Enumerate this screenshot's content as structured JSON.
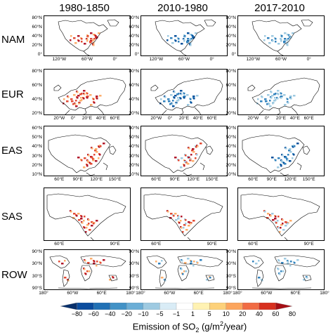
{
  "columns": [
    "1980-1850",
    "2010-1980",
    "2017-2010"
  ],
  "rows": [
    {
      "id": "NAM",
      "label": "NAM",
      "lat_ticks": [
        "80°N",
        "60°N",
        "40°N",
        "20°N",
        "0°"
      ],
      "lon_ticks": [
        "120°W",
        "60°W",
        "0°"
      ]
    },
    {
      "id": "EUR",
      "label": "EUR",
      "lat_ticks": [
        "80°N",
        "60°N",
        "40°N",
        "20°N"
      ],
      "lon_ticks": [
        "20°W",
        "0°",
        "20°E",
        "40°E",
        "60°E"
      ]
    },
    {
      "id": "EAS",
      "label": "EAS",
      "lat_ticks": [
        "60°N",
        "50°N",
        "40°N",
        "30°N",
        "20°N",
        "10°N"
      ],
      "lon_ticks": [
        "60°E",
        "90°E",
        "120°E",
        "150°E"
      ]
    },
    {
      "id": "SAS",
      "label": "SAS",
      "lat_ticks": [],
      "lon_ticks": [
        "60°E",
        "90°E"
      ]
    },
    {
      "id": "ROW",
      "label": "ROW",
      "lat_ticks": [
        "90°N",
        "30°N",
        "30°S",
        "90°S"
      ],
      "lon_ticks": [
        "180°",
        "60°W",
        "60°E",
        "180°"
      ]
    }
  ],
  "colorbar": {
    "ticks": [
      "−80",
      "−60",
      "−40",
      "−20",
      "−10",
      "−5",
      "−1",
      "1",
      "5",
      "10",
      "20",
      "40",
      "60",
      "80"
    ],
    "colors": [
      "#08306b",
      "#0b4d9e",
      "#2171b5",
      "#4292c6",
      "#6baed6",
      "#9ecae1",
      "#d9ecf6",
      "#ffffff",
      "#fff2b3",
      "#fdd17a",
      "#fca55d",
      "#f16c44",
      "#d7301f",
      "#a50f15"
    ],
    "title_prefix": "Emission of  SO",
    "title_sub": "2",
    "title_mid": " (g/m",
    "title_sup": "2",
    "title_suffix": "/year)"
  },
  "palette": {
    "increase_strong": "#b2182b",
    "increase": "#e34a33",
    "increase_light": "#fdae6b",
    "decrease_strong": "#08519c",
    "decrease": "#3182bd",
    "decrease_light": "#9ecae1"
  }
}
